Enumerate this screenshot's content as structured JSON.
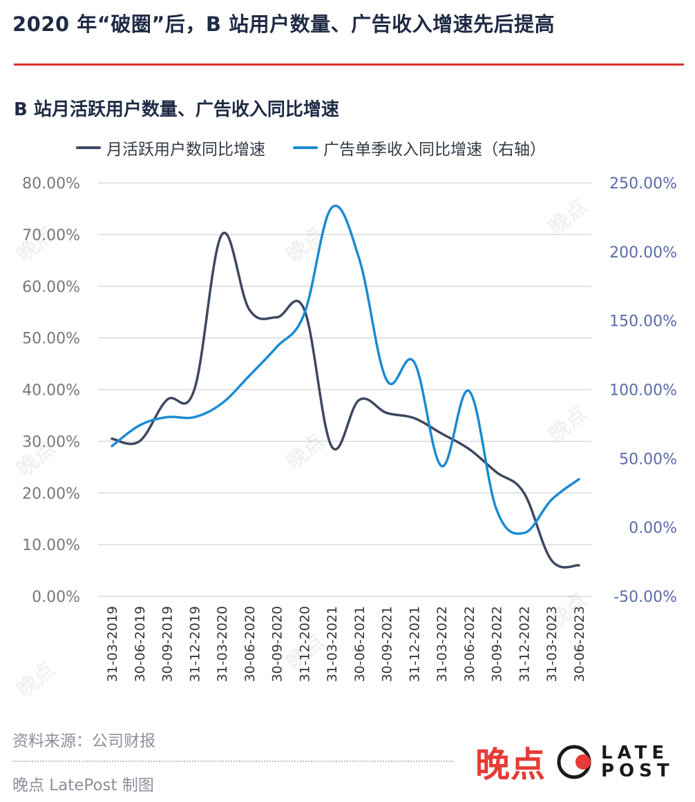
{
  "headline": "2020 年“破圈”后，B 站用户数量、广告收入增速先后提高",
  "footer": {
    "source": "资料来源：公司财报",
    "credit": "晚点 LatePost 制图"
  },
  "logo": {
    "cn": "晚点",
    "en_top": "LATE",
    "en_bottom": "POST"
  },
  "watermark": "晚点",
  "colors": {
    "accent_rule": "#d8322e",
    "mau_series": "#3d475f",
    "ad_series": "#1a8ad4",
    "right_axis_text": "#5a6aa8",
    "left_axis_text": "#777777",
    "logo_red": "#e63b36"
  },
  "chart_data": {
    "type": "line",
    "title": "B 站月活跃用户数量、广告收入同比增速",
    "x": [
      "31-03-2019",
      "30-06-2019",
      "30-09-2019",
      "31-12-2019",
      "31-03-2020",
      "30-06-2020",
      "30-09-2020",
      "31-12-2020",
      "31-03-2021",
      "30-06-2021",
      "30-09-2021",
      "31-12-2021",
      "31-03-2022",
      "30-06-2022",
      "30-09-2022",
      "31-12-2022",
      "31-03-2023",
      "30-06-2023"
    ],
    "series": [
      {
        "name": "月活跃用户数同比增速",
        "axis": "left",
        "values": [
          30.5,
          30.0,
          38.0,
          40.0,
          70.0,
          55.5,
          54.0,
          55.5,
          29.0,
          38.0,
          35.5,
          34.5,
          31.5,
          28.5,
          24.0,
          20.0,
          7.0,
          6.0
        ]
      },
      {
        "name": "广告单季收入同比增速（右轴）",
        "axis": "right",
        "values": [
          59.0,
          74.0,
          80.0,
          80.0,
          90.0,
          110.0,
          131.0,
          155.0,
          232.0,
          195.0,
          107.0,
          120.0,
          44.5,
          99.0,
          13.0,
          -4.0,
          20.0,
          35.0
        ]
      }
    ],
    "y_left": {
      "min": 0,
      "max": 80,
      "step": 10,
      "ticks": [
        "0.00%",
        "10.00%",
        "20.00%",
        "30.00%",
        "40.00%",
        "50.00%",
        "60.00%",
        "70.00%",
        "80.00%"
      ]
    },
    "y_right": {
      "min": -50,
      "max": 250,
      "step": 50,
      "ticks": [
        "-50.00%",
        "0.00%",
        "50.00%",
        "100.00%",
        "150.00%",
        "200.00%",
        "250.00%"
      ]
    },
    "grid": true,
    "legend_position": "top"
  }
}
